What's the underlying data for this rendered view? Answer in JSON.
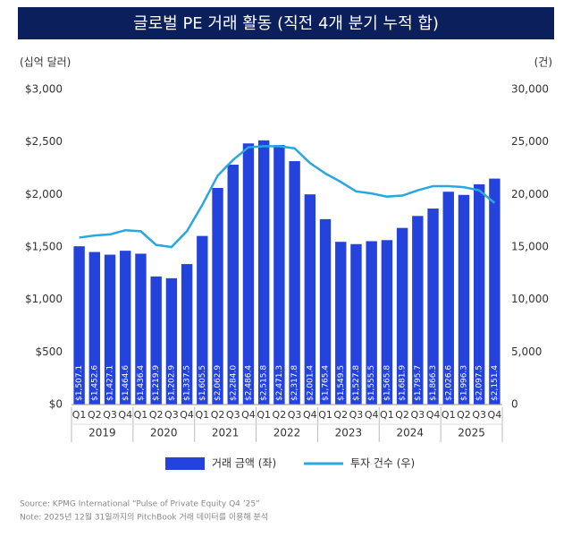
{
  "chart_data": {
    "type": "bar-line",
    "title": "글로벌 PE 거래 활동 (직전 4개 분기 누적 합)",
    "y_label": "(십억 달러)",
    "y2_label": "(건)",
    "categories": [
      "Q1",
      "Q2",
      "Q3",
      "Q4",
      "Q1",
      "Q2",
      "Q3",
      "Q4",
      "Q1",
      "Q2",
      "Q3",
      "Q4",
      "Q1",
      "Q2",
      "Q3",
      "Q4",
      "Q1",
      "Q2",
      "Q3",
      "Q4",
      "Q1",
      "Q2",
      "Q3",
      "Q4",
      "Q1",
      "Q2",
      "Q3",
      "Q4"
    ],
    "x_groups": [
      "2019",
      "2020",
      "2021",
      "2022",
      "2023",
      "2024",
      "2025"
    ],
    "series": [
      {
        "name": "거래 금액 (좌)",
        "color": "#2443dc",
        "type": "bar",
        "values": [
          1507.1,
          1452.6,
          1427.1,
          1464.6,
          1436.4,
          1219.9,
          1202.9,
          1337.5,
          1605.5,
          2062.9,
          2284.0,
          2486.4,
          2515.8,
          2471.3,
          2317.8,
          2001.4,
          1765.4,
          1549.5,
          1527.8,
          1555.5,
          1565.8,
          1681.9,
          1795.7,
          1866.3,
          2026.6,
          1996.3,
          2097.5,
          2151.4
        ],
        "value_labels": [
          "$1,507.1",
          "$1,452.6",
          "$1,427.1",
          "$1,464.6",
          "$1,436.4",
          "$1,219.9",
          "$1,202.9",
          "$1,337.5",
          "$1,605.5",
          "$2,062.9",
          "$2,284.0",
          "$2,486.4",
          "$2,515.8",
          "$2,471.3",
          "$2,317.8",
          "$2,001.4",
          "$1,765.4",
          "$1,549.5",
          "$1,527.8",
          "$1,555.5",
          "$1,565.8",
          "$1,681.9",
          "$1,795.7",
          "$1,866.3",
          "$2,026.6",
          "$1,996.3",
          "$2,097.5",
          "$2,151.4"
        ]
      },
      {
        "name": "투자 건수 (우)",
        "color": "#29a8e0",
        "type": "line",
        "axis": "y2",
        "values": [
          15900,
          16100,
          16200,
          16600,
          16500,
          15200,
          15000,
          16500,
          19000,
          21800,
          23300,
          24500,
          24600,
          24600,
          24400,
          23000,
          22000,
          21200,
          20300,
          20100,
          19800,
          19900,
          20400,
          20800,
          20800,
          20700,
          20400,
          19200
        ]
      }
    ],
    "ylim": [
      0,
      3000
    ],
    "yticks": [
      {
        "value": 0,
        "label": "$0"
      },
      {
        "value": 500,
        "label": "$500"
      },
      {
        "value": 1000,
        "label": "$1,000"
      },
      {
        "value": 1500,
        "label": "$1,500"
      },
      {
        "value": 2000,
        "label": "$2,000"
      },
      {
        "value": 2500,
        "label": "$2,500"
      },
      {
        "value": 3000,
        "label": "$3,000"
      }
    ],
    "y2lim": [
      0,
      30000
    ],
    "y2ticks": [
      0,
      {
        "value": 5000,
        "label": "5,000"
      },
      {
        "value": 10000,
        "label": "10,000"
      },
      {
        "value": 15000,
        "label": "15,000"
      },
      {
        "value": 20000,
        "label": "20,000"
      },
      {
        "value": 25000,
        "label": "25,000"
      },
      {
        "value": 30000,
        "label": "30,000"
      }
    ],
    "notes": [
      "Source: KPMG International “Pulse of Private Equity Q4 ’25”",
      "Note: 2025년 12월 31일까지의 PitchBook 거래 데이터를 이용해 분석"
    ]
  }
}
